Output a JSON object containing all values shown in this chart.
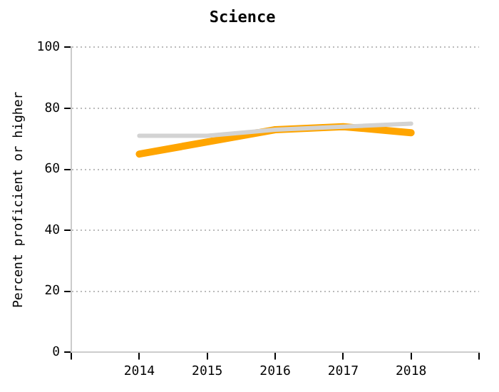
{
  "chart_data": {
    "type": "line",
    "title": "Science",
    "ylabel": "Percent proficient or higher",
    "x": [
      2014,
      2015,
      2016,
      2017,
      2018
    ],
    "xlim": [
      2013,
      2019
    ],
    "xticks": [
      {
        "value": 2013,
        "label": null
      },
      2014,
      2015,
      2016,
      2017,
      2018,
      {
        "value": 2019,
        "label": null
      }
    ],
    "ylim": [
      0,
      100
    ],
    "yticks": [
      0,
      20,
      40,
      60,
      80,
      100
    ],
    "grid": "y",
    "legend": false,
    "marker": "none",
    "line_style": "solid",
    "series": [
      {
        "color": "#d3d3d3",
        "values": [
          71,
          71,
          73,
          74,
          75
        ]
      },
      {
        "color": "#ffa500",
        "values": [
          65,
          69,
          73,
          74,
          72
        ]
      }
    ]
  }
}
